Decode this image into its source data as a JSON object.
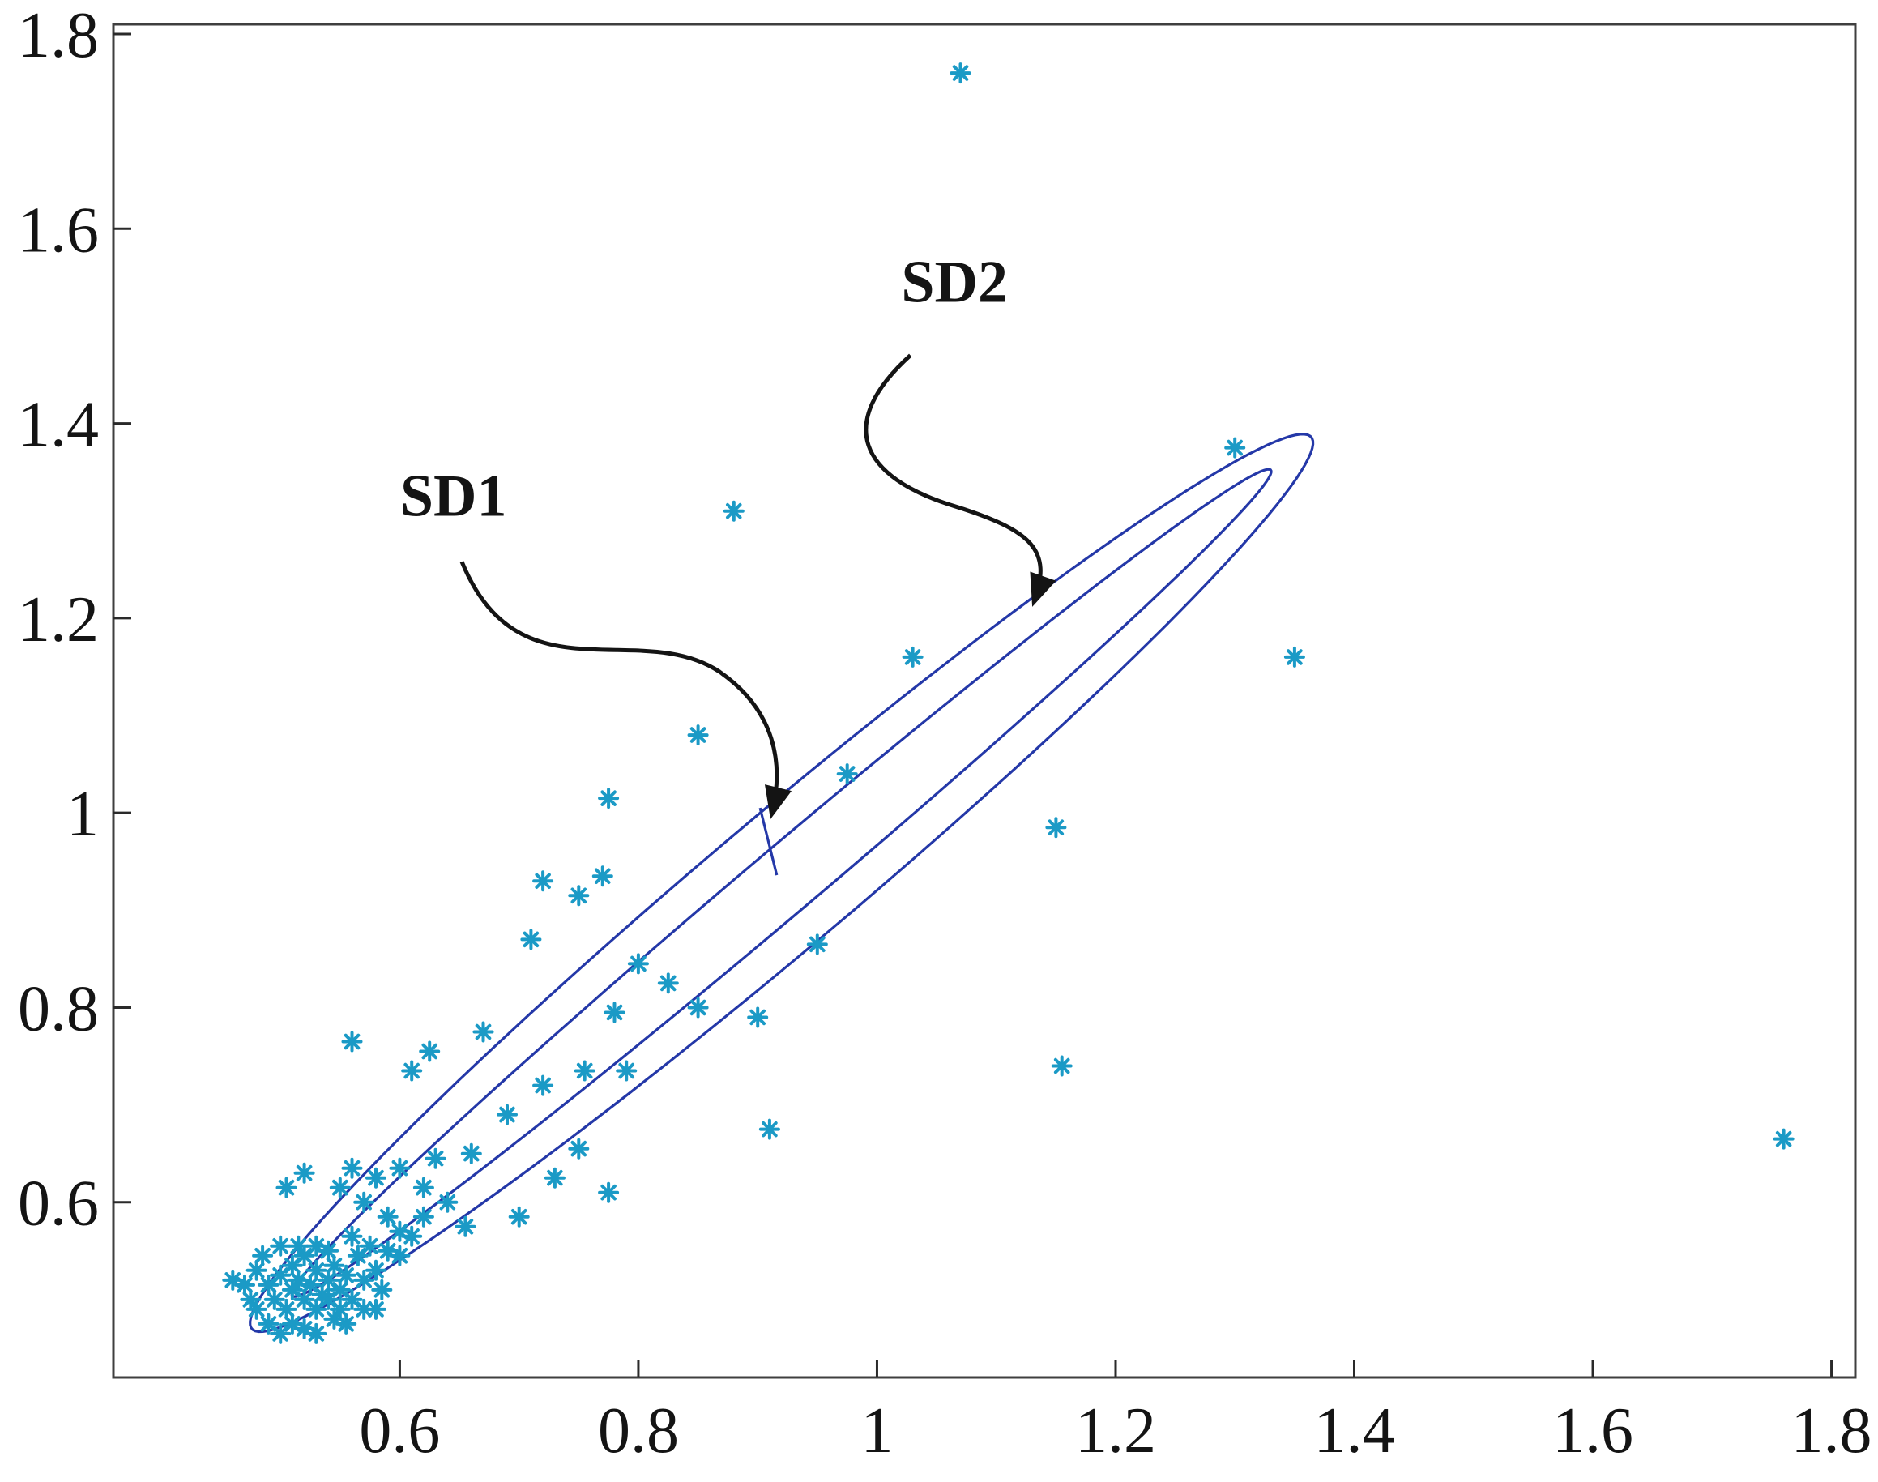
{
  "figure": {
    "background": "#ffffff",
    "annotation_color": "#141414"
  },
  "axis": {
    "border_color": "#3f3f3f",
    "tick_color": "#2a2a2a",
    "label_color": "#141414"
  },
  "chart_data": {
    "type": "scatter",
    "title": "",
    "xlabel": "",
    "ylabel": "",
    "grid": false,
    "legend": null,
    "xlim": [
      0.36,
      1.82
    ],
    "ylim": [
      0.42,
      1.81
    ],
    "x_ticks": [
      0.6,
      0.8,
      1,
      1.2,
      1.4,
      1.6,
      1.8
    ],
    "y_ticks": [
      0.6,
      0.8,
      1,
      1.2,
      1.4,
      1.6,
      1.8
    ],
    "marker": "asterisk",
    "marker_color": "#1b9ac6",
    "points": [
      [
        1.07,
        1.76
      ],
      [
        0.88,
        1.31
      ],
      [
        1.3,
        1.375
      ],
      [
        1.35,
        1.16
      ],
      [
        1.76,
        0.665
      ],
      [
        1.15,
        0.985
      ],
      [
        1.155,
        0.74
      ],
      [
        1.03,
        1.16
      ],
      [
        0.975,
        1.04
      ],
      [
        0.85,
        1.08
      ],
      [
        0.775,
        1.015
      ],
      [
        0.95,
        0.865
      ],
      [
        0.9,
        0.79
      ],
      [
        0.91,
        0.675
      ],
      [
        0.72,
        0.93
      ],
      [
        0.75,
        0.915
      ],
      [
        0.77,
        0.935
      ],
      [
        0.71,
        0.87
      ],
      [
        0.8,
        0.845
      ],
      [
        0.825,
        0.825
      ],
      [
        0.85,
        0.8
      ],
      [
        0.78,
        0.795
      ],
      [
        0.755,
        0.735
      ],
      [
        0.79,
        0.735
      ],
      [
        0.72,
        0.72
      ],
      [
        0.67,
        0.775
      ],
      [
        0.56,
        0.765
      ],
      [
        0.625,
        0.755
      ],
      [
        0.61,
        0.735
      ],
      [
        0.69,
        0.69
      ],
      [
        0.66,
        0.65
      ],
      [
        0.63,
        0.645
      ],
      [
        0.75,
        0.655
      ],
      [
        0.73,
        0.625
      ],
      [
        0.775,
        0.61
      ],
      [
        0.7,
        0.585
      ],
      [
        0.62,
        0.615
      ],
      [
        0.6,
        0.635
      ],
      [
        0.58,
        0.625
      ],
      [
        0.56,
        0.635
      ],
      [
        0.55,
        0.615
      ],
      [
        0.57,
        0.6
      ],
      [
        0.59,
        0.585
      ],
      [
        0.6,
        0.57
      ],
      [
        0.62,
        0.585
      ],
      [
        0.52,
        0.63
      ],
      [
        0.505,
        0.615
      ],
      [
        0.64,
        0.6
      ],
      [
        0.655,
        0.575
      ],
      [
        0.46,
        0.52
      ],
      [
        0.475,
        0.5
      ],
      [
        0.48,
        0.53
      ],
      [
        0.49,
        0.515
      ],
      [
        0.495,
        0.5
      ],
      [
        0.5,
        0.525
      ],
      [
        0.505,
        0.49
      ],
      [
        0.51,
        0.51
      ],
      [
        0.51,
        0.535
      ],
      [
        0.515,
        0.52
      ],
      [
        0.52,
        0.5
      ],
      [
        0.52,
        0.545
      ],
      [
        0.525,
        0.515
      ],
      [
        0.53,
        0.53
      ],
      [
        0.53,
        0.49
      ],
      [
        0.535,
        0.505
      ],
      [
        0.54,
        0.52
      ],
      [
        0.54,
        0.55
      ],
      [
        0.545,
        0.535
      ],
      [
        0.55,
        0.51
      ],
      [
        0.55,
        0.49
      ],
      [
        0.555,
        0.525
      ],
      [
        0.56,
        0.5
      ],
      [
        0.565,
        0.545
      ],
      [
        0.57,
        0.52
      ],
      [
        0.575,
        0.555
      ],
      [
        0.58,
        0.53
      ],
      [
        0.585,
        0.51
      ],
      [
        0.49,
        0.475
      ],
      [
        0.5,
        0.465
      ],
      [
        0.51,
        0.475
      ],
      [
        0.52,
        0.47
      ],
      [
        0.53,
        0.465
      ],
      [
        0.545,
        0.48
      ],
      [
        0.555,
        0.475
      ],
      [
        0.57,
        0.49
      ],
      [
        0.59,
        0.55
      ],
      [
        0.6,
        0.545
      ],
      [
        0.61,
        0.565
      ],
      [
        0.48,
        0.49
      ],
      [
        0.47,
        0.515
      ],
      [
        0.485,
        0.545
      ],
      [
        0.5,
        0.555
      ],
      [
        0.515,
        0.555
      ],
      [
        0.53,
        0.555
      ],
      [
        0.56,
        0.565
      ],
      [
        0.54,
        0.5
      ],
      [
        0.58,
        0.49
      ]
    ],
    "ellipses": [
      {
        "name": "SD2",
        "cx": 0.92,
        "cy": 0.928,
        "a": 0.638,
        "b": 0.063,
        "angle_deg": 46,
        "color": "#2438a8"
      },
      {
        "name": "SD1",
        "cx": 0.92,
        "cy": 0.928,
        "a": 0.59,
        "b": 0.031,
        "angle_deg": 46,
        "color": "#2438a8"
      }
    ],
    "connector": [
      [
        0.902,
        1.005
      ],
      [
        0.916,
        0.936
      ]
    ],
    "annotations": [
      {
        "label": "SD1",
        "label_x": 0.645,
        "label_y": 1.305,
        "arrow_path": [
          [
            0.652,
            1.258
          ],
          [
            0.7,
            1.115
          ],
          [
            0.8,
            1.2
          ],
          [
            0.868,
            1.145
          ],
          [
            0.915,
            1.105
          ],
          [
            0.922,
            1.05
          ],
          [
            0.912,
            1.0
          ]
        ]
      },
      {
        "label": "SD2",
        "label_x": 1.065,
        "label_y": 1.525,
        "arrow_path": [
          [
            1.028,
            1.47
          ],
          [
            0.965,
            1.4
          ],
          [
            0.985,
            1.345
          ],
          [
            1.065,
            1.315
          ],
          [
            1.13,
            1.29
          ],
          [
            1.147,
            1.27
          ],
          [
            1.132,
            1.218
          ]
        ]
      }
    ]
  }
}
